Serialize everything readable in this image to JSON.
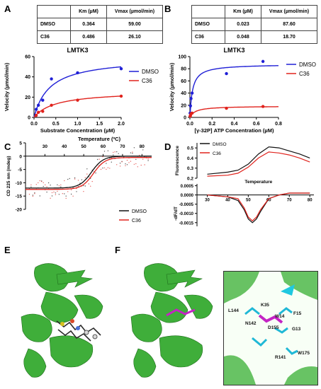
{
  "panels": {
    "A": {
      "letter": "A"
    },
    "B": {
      "letter": "B"
    },
    "C": {
      "letter": "C"
    },
    "D": {
      "letter": "D"
    },
    "E": {
      "letter": "E"
    },
    "F": {
      "letter": "F"
    }
  },
  "tables": {
    "A": {
      "header": [
        "",
        "Km (µM)",
        "Vmax (µmol/min)"
      ],
      "rows": [
        [
          "DMSO",
          "0.364",
          "59.00"
        ],
        [
          "C36",
          "0.486",
          "26.10"
        ]
      ]
    },
    "B": {
      "header": [
        "",
        "Km (µM)",
        "Vmax (µmol/min)"
      ],
      "rows": [
        [
          "DMSO",
          "0.023",
          "87.60"
        ],
        [
          "C36",
          "0.048",
          "18.70"
        ]
      ]
    }
  },
  "structure_labels": [
    "L144",
    "K35",
    "W14",
    "F15",
    "N142",
    "D155",
    "G13",
    "W175",
    "R141"
  ],
  "chart_data": [
    {
      "id": "A",
      "type": "scatter",
      "title": "LMTK3",
      "xlabel": "Substrate Concentration (µM)",
      "ylabel": "Velocity (µmol/min)",
      "xlim": [
        0,
        2.0
      ],
      "ylim": [
        0,
        60
      ],
      "xticks": [
        "0.0",
        "0.5",
        "1.0",
        "1.5",
        "2.0"
      ],
      "yticks": [
        "0",
        "20",
        "40",
        "60"
      ],
      "legend": "right",
      "series": [
        {
          "name": "DMSO",
          "color": "#1f1fd6",
          "x": [
            0.05,
            0.1,
            0.2,
            0.4,
            1.0,
            2.0
          ],
          "y": [
            8,
            12,
            17,
            38,
            44,
            48
          ],
          "fit": {
            "vmax": 59.0,
            "km": 0.364
          }
        },
        {
          "name": "C36",
          "color": "#e0221c",
          "x": [
            0.05,
            0.1,
            0.2,
            0.4,
            1.0,
            2.0
          ],
          "y": [
            2,
            5,
            6,
            12,
            17,
            21
          ],
          "fit": {
            "vmax": 26.1,
            "km": 0.486
          }
        }
      ]
    },
    {
      "id": "B",
      "type": "scatter",
      "title": "LMTK3",
      "xlabel": "[γ-32P] ATP Concentration (µM)",
      "ylabel": "Velocity (µmol/min)",
      "xlim": [
        0,
        0.8
      ],
      "ylim": [
        0,
        100
      ],
      "xticks": [
        "0.0",
        "0.2",
        "0.4",
        "0.6",
        "0.8"
      ],
      "yticks": [
        "0",
        "20",
        "40",
        "60",
        "80",
        "100"
      ],
      "legend": "right",
      "series": [
        {
          "name": "DMSO",
          "color": "#1f1fd6",
          "x": [
            0.002,
            0.005,
            0.01,
            0.02,
            0.33,
            0.66
          ],
          "y": [
            7,
            19,
            31,
            40,
            72,
            92
          ],
          "fit": {
            "vmax": 87.6,
            "km": 0.023
          }
        },
        {
          "name": "C36",
          "color": "#e0221c",
          "x": [
            0.002,
            0.005,
            0.01,
            0.02,
            0.33,
            0.66
          ],
          "y": [
            2,
            3,
            6,
            7,
            15,
            18
          ],
          "fit": {
            "vmax": 18.7,
            "km": 0.048
          }
        }
      ]
    },
    {
      "id": "C",
      "type": "scatter",
      "xlabel": "Temperature (ºC)",
      "ylabel": "CD 225 nm (mdeg)",
      "xlim": [
        20,
        85
      ],
      "ylim": [
        -20,
        5
      ],
      "xticks": [
        "30",
        "40",
        "50",
        "60",
        "70",
        "80"
      ],
      "yticks": [
        "5",
        "0",
        "-5",
        "-10",
        "-15",
        "-20"
      ],
      "legend": "bottom-right",
      "series": [
        {
          "name": "DMSO",
          "color": "#111111",
          "tm": 54,
          "low": -12,
          "high": 0
        },
        {
          "name": "C36",
          "color": "#e0221c",
          "tm": 55,
          "low": -12.5,
          "high": -0.5
        }
      ]
    },
    {
      "id": "D_top",
      "type": "line",
      "ylabel": "Fluorescence",
      "xlim": [
        25,
        82
      ],
      "ylim": [
        0.2,
        0.55
      ],
      "yticks": [
        "0.5",
        "0.4",
        "0.3",
        "0.2"
      ],
      "legend": "top-left",
      "series": [
        {
          "name": "DMSO",
          "color": "#111111",
          "x": [
            30,
            40,
            45,
            50,
            55,
            60,
            65,
            70,
            75,
            80
          ],
          "y": [
            0.24,
            0.26,
            0.28,
            0.34,
            0.44,
            0.51,
            0.5,
            0.47,
            0.44,
            0.4
          ]
        },
        {
          "name": "C36",
          "color": "#e0221c",
          "x": [
            30,
            40,
            45,
            50,
            55,
            60,
            65,
            70,
            75,
            80
          ],
          "y": [
            0.22,
            0.23,
            0.25,
            0.31,
            0.4,
            0.46,
            0.45,
            0.43,
            0.4,
            0.36
          ]
        }
      ]
    },
    {
      "id": "D_bottom",
      "type": "line",
      "xlabel": "Temperature",
      "ylabel": "-dF/dT",
      "xlim": [
        25,
        82
      ],
      "ylim": [
        -0.0017,
        0.0006
      ],
      "xticks": [
        "30",
        "40",
        "50",
        "60",
        "70",
        "80"
      ],
      "yticks": [
        "0.0005",
        "0.0000",
        "-0.0005",
        "-0.0010",
        "-0.0015"
      ],
      "series": [
        {
          "name": "DMSO",
          "color": "#111111",
          "x": [
            30,
            40,
            45,
            48,
            50,
            52,
            54,
            56,
            60,
            65,
            70,
            80
          ],
          "y": [
            0,
            -0.0001,
            -0.0003,
            -0.0008,
            -0.0013,
            -0.0015,
            -0.0013,
            -0.0009,
            -0.0002,
            0,
            0.0001,
            0.0001
          ]
        },
        {
          "name": "C36",
          "color": "#e0221c",
          "x": [
            30,
            40,
            45,
            48,
            50,
            52,
            54,
            56,
            60,
            65,
            70,
            80
          ],
          "y": [
            0,
            -0.0001,
            -0.0002,
            -0.0007,
            -0.0012,
            -0.0014,
            -0.0012,
            -0.0008,
            -0.0002,
            0,
            0.0001,
            0.0001
          ]
        }
      ]
    }
  ]
}
